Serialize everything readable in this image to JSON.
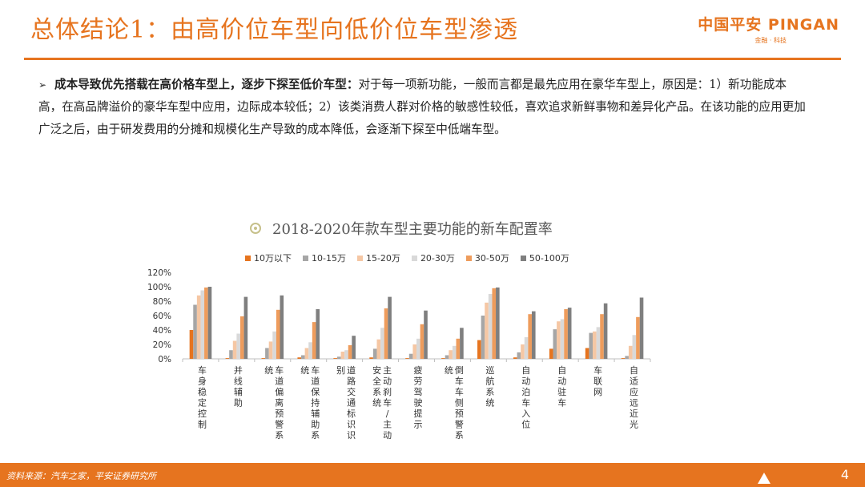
{
  "header": {
    "title": "总体结论1：由高价位车型向低价位车型渗透",
    "logo_main": "中国平安 PINGAN",
    "logo_sub": "金融 · 科技"
  },
  "body": {
    "bold_lead": "成本导致优先搭载在高价格车型上，逐步下探至低价车型：",
    "text": "对于每一项新功能，一般而言都是最先应用在豪华车型上，原因是：1）新功能成本高，在高品牌溢价的豪华车型中应用，边际成本较低；2）该类消费人群对价格的敏感性较低，喜欢追求新鲜事物和差异化产品。在该功能的应用更加广泛之后，由于研发费用的分摊和规模化生产导致的成本降低，会逐渐下探至中低端车型。"
  },
  "footer": {
    "source": "资料来源：汽车之家，平安证券研究所",
    "page": "4"
  },
  "colors": {
    "accent": "#e6741f",
    "series": [
      "#e6741f",
      "#a6a6a6",
      "#f5c7a4",
      "#d9d9d9",
      "#ee9c5c",
      "#7f7f7f"
    ]
  },
  "chart_data": {
    "type": "bar",
    "title": "2018-2020年款车型主要功能的新车配置率",
    "legend_position": "top",
    "ylim": [
      0,
      120
    ],
    "yticks": [
      "0%",
      "20%",
      "40%",
      "60%",
      "80%",
      "100%",
      "120%"
    ],
    "categories": [
      "车身稳定控制",
      "并线辅助",
      "车道偏离预警系统",
      "车道保持辅助系统",
      "道路交通标识识别",
      "主动刹车/主动安全系统",
      "疲劳驾驶提示",
      "倒车车侧预警系统",
      "巡航系统",
      "自动泊车入位",
      "自动驻车",
      "车联网",
      "自适应远近光"
    ],
    "series": [
      {
        "name": "10万以下",
        "values": [
          40,
          1,
          1,
          2,
          1,
          2,
          1,
          1,
          26,
          2,
          14,
          15,
          1
        ]
      },
      {
        "name": "10-15万",
        "values": [
          75,
          12,
          15,
          5,
          3,
          14,
          7,
          5,
          60,
          9,
          41,
          36,
          4
        ]
      },
      {
        "name": "15-20万",
        "values": [
          88,
          25,
          24,
          15,
          10,
          27,
          20,
          12,
          78,
          20,
          52,
          38,
          18
        ]
      },
      {
        "name": "20-30万",
        "values": [
          95,
          35,
          38,
          23,
          12,
          43,
          28,
          18,
          90,
          30,
          55,
          44,
          33
        ]
      },
      {
        "name": "30-50万",
        "values": [
          99,
          59,
          68,
          51,
          19,
          70,
          48,
          28,
          98,
          62,
          69,
          62,
          58
        ]
      },
      {
        "name": "50-100万",
        "values": [
          100,
          86,
          88,
          69,
          32,
          86,
          67,
          43,
          99,
          66,
          71,
          77,
          85
        ]
      }
    ]
  }
}
